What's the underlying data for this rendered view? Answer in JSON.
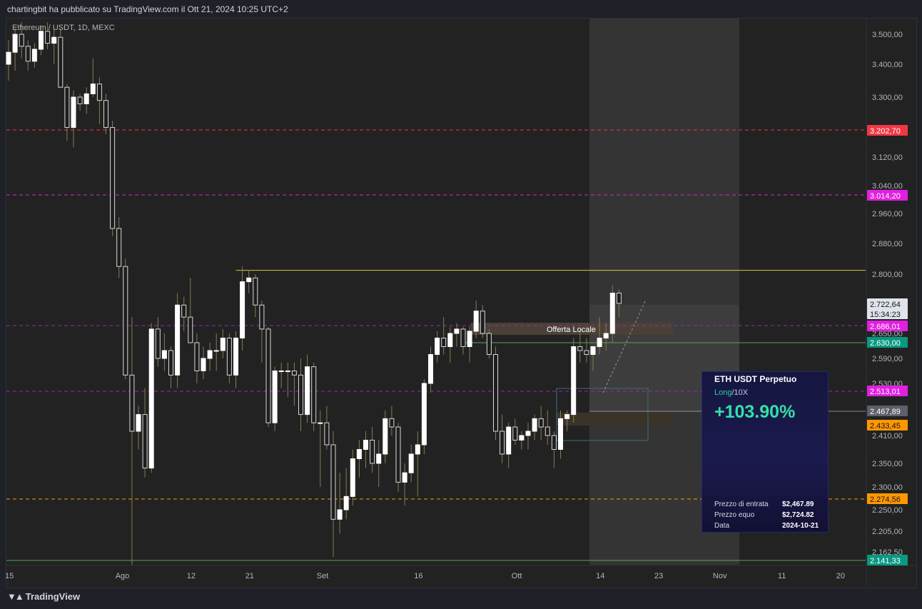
{
  "header": {
    "published_by": "chartingbit ha pubblicato su TradingView.com il Ott 21, 2024 10:25 UTC+2"
  },
  "symbol": {
    "label": "Ethereum / USDT, 1D, MEXC"
  },
  "footer": {
    "brand": "TradingView"
  },
  "annotation": {
    "label": "Offerta Locale"
  },
  "price_tags": [
    {
      "value": "3.202,70",
      "bg": "#f23645",
      "fg": "#ffffff"
    },
    {
      "value": "3.014,20",
      "bg": "#e020e0",
      "fg": "#ffffff"
    },
    {
      "value": "2.722,64",
      "bg": "#e0e3eb",
      "fg": "#131722"
    },
    {
      "value": "15:34:23",
      "bg": "#e0e3eb",
      "fg": "#131722"
    },
    {
      "value": "2.686,01",
      "bg": "#e020e0",
      "fg": "#ffffff"
    },
    {
      "value": "2.630,00",
      "bg": "#089981",
      "fg": "#ffffff"
    },
    {
      "value": "2.513,01",
      "bg": "#e020e0",
      "fg": "#ffffff"
    },
    {
      "value": "2.467,89",
      "bg": "#5d606b",
      "fg": "#ffffff"
    },
    {
      "value": "2.433,45",
      "bg": "#ff9800",
      "fg": "#131722"
    },
    {
      "value": "2.274,56",
      "bg": "#ff9800",
      "fg": "#131722"
    },
    {
      "value": "2.141,33",
      "bg": "#089981",
      "fg": "#ffffff"
    }
  ],
  "card": {
    "title": "ETH USDT Perpetuo",
    "side": "Long",
    "leverage": "/10X",
    "pnl": "+103.90%",
    "entry_label": "Prezzo di entrata",
    "entry_value": "$2,467.89",
    "fair_label": "Prezzo equo",
    "fair_value": "$2,724.82",
    "date_label": "Data",
    "date_value": "2024-10-21"
  },
  "chart_data": {
    "type": "candlestick",
    "symbol": "Ethereum / USDT",
    "interval": "1D",
    "exchange": "MEXC",
    "y_ticks": [
      {
        "label": "3.500,00",
        "value": 3500
      },
      {
        "label": "3.400,00",
        "value": 3400
      },
      {
        "label": "3.300,00",
        "value": 3300
      },
      {
        "label": "3.120,00",
        "value": 3120
      },
      {
        "label": "3.040,00",
        "value": 3040
      },
      {
        "label": "2.960,00",
        "value": 2960
      },
      {
        "label": "2.880,00",
        "value": 2880
      },
      {
        "label": "2.800,00",
        "value": 2800
      },
      {
        "label": "2.650,00",
        "value": 2650
      },
      {
        "label": "2.590,00",
        "value": 2590
      },
      {
        "label": "2.530,00",
        "value": 2530
      },
      {
        "label": "2.410,00",
        "value": 2410
      },
      {
        "label": "2.350,00",
        "value": 2350
      },
      {
        "label": "2.300,00",
        "value": 2300
      },
      {
        "label": "2.250,00",
        "value": 2250
      },
      {
        "label": "2.205,00",
        "value": 2205
      },
      {
        "label": "2.162,50",
        "value": 2162.5
      }
    ],
    "x_ticks": [
      {
        "label": "15",
        "day": 0
      },
      {
        "label": "Ago",
        "day": 17
      },
      {
        "label": "12",
        "day": 28
      },
      {
        "label": "21",
        "day": 37
      },
      {
        "label": "Set",
        "day": 48
      },
      {
        "label": "16",
        "day": 63
      },
      {
        "label": "Ott",
        "day": 78
      },
      {
        "label": "14",
        "day": 91
      },
      {
        "label": "23",
        "day": 100
      },
      {
        "label": "Nov",
        "day": 109
      },
      {
        "label": "11",
        "day": 119
      },
      {
        "label": "20",
        "day": 128
      }
    ],
    "horizontal_levels": [
      {
        "value": 3202.7,
        "color": "#f23645",
        "style": "dashed"
      },
      {
        "value": 3014.2,
        "color": "#e020e0",
        "style": "dashed"
      },
      {
        "value": 2810,
        "color": "#d4c84a",
        "style": "solid",
        "from_day": 35
      },
      {
        "value": 2686.01,
        "color": "#9c27b0",
        "style": "dashed"
      },
      {
        "value": 2630.0,
        "color": "#4caf50",
        "style": "solid",
        "from_day": 70
      },
      {
        "value": 2513.01,
        "color": "#9c27b0",
        "style": "dashed"
      },
      {
        "value": 2274.56,
        "color": "#ff9800",
        "style": "dashed"
      },
      {
        "value": 2141.33,
        "color": "#4caf50",
        "style": "solid"
      }
    ],
    "candles_start": "2024-07-15",
    "candles": [
      [
        3400,
        3480,
        3350,
        3440
      ],
      [
        3440,
        3520,
        3380,
        3500
      ],
      [
        3500,
        3540,
        3420,
        3460
      ],
      [
        3460,
        3480,
        3380,
        3410
      ],
      [
        3410,
        3470,
        3390,
        3450
      ],
      [
        3450,
        3530,
        3430,
        3510
      ],
      [
        3510,
        3540,
        3450,
        3470
      ],
      [
        3470,
        3520,
        3400,
        3490
      ],
      [
        3490,
        3520,
        3330,
        3330
      ],
      [
        3330,
        3340,
        3170,
        3210
      ],
      [
        3210,
        3320,
        3150,
        3300
      ],
      [
        3300,
        3310,
        3260,
        3280
      ],
      [
        3280,
        3330,
        3250,
        3310
      ],
      [
        3310,
        3420,
        3300,
        3340
      ],
      [
        3340,
        3360,
        3220,
        3290
      ],
      [
        3290,
        3310,
        3190,
        3210
      ],
      [
        3210,
        3230,
        2900,
        2920
      ],
      [
        2920,
        2950,
        2790,
        2820
      ],
      [
        2820,
        2840,
        2540,
        2550
      ],
      [
        2550,
        2700,
        2130,
        2420
      ],
      [
        2420,
        2480,
        2380,
        2460
      ],
      [
        2460,
        2520,
        2320,
        2340
      ],
      [
        2340,
        2690,
        2330,
        2670
      ],
      [
        2670,
        2700,
        2570,
        2590
      ],
      [
        2590,
        2650,
        2560,
        2610
      ],
      [
        2610,
        2620,
        2520,
        2550
      ],
      [
        2550,
        2750,
        2520,
        2720
      ],
      [
        2720,
        2740,
        2660,
        2700
      ],
      [
        2700,
        2790,
        2630,
        2630
      ],
      [
        2630,
        2650,
        2530,
        2560
      ],
      [
        2560,
        2620,
        2540,
        2590
      ],
      [
        2590,
        2630,
        2560,
        2610
      ],
      [
        2610,
        2650,
        2560,
        2610
      ],
      [
        2610,
        2670,
        2590,
        2640
      ],
      [
        2640,
        2650,
        2530,
        2550
      ],
      [
        2550,
        2660,
        2520,
        2640
      ],
      [
        2640,
        2820,
        2610,
        2780
      ],
      [
        2780,
        2810,
        2750,
        2790
      ],
      [
        2790,
        2800,
        2700,
        2720
      ],
      [
        2720,
        2730,
        2580,
        2670
      ],
      [
        2670,
        2680,
        2430,
        2440
      ],
      [
        2440,
        2570,
        2420,
        2560
      ],
      [
        2560,
        2580,
        2520,
        2560
      ],
      [
        2560,
        2580,
        2500,
        2560
      ],
      [
        2560,
        2580,
        2480,
        2550
      ],
      [
        2550,
        2590,
        2420,
        2460
      ],
      [
        2460,
        2600,
        2440,
        2570
      ],
      [
        2570,
        2580,
        2420,
        2440
      ],
      [
        2440,
        2470,
        2300,
        2440
      ],
      [
        2440,
        2480,
        2380,
        2390
      ],
      [
        2390,
        2420,
        2150,
        2230
      ],
      [
        2230,
        2330,
        2200,
        2250
      ],
      [
        2250,
        2340,
        2230,
        2280
      ],
      [
        2280,
        2380,
        2260,
        2360
      ],
      [
        2360,
        2400,
        2320,
        2380
      ],
      [
        2380,
        2420,
        2340,
        2400
      ],
      [
        2400,
        2430,
        2330,
        2350
      ],
      [
        2350,
        2400,
        2300,
        2370
      ],
      [
        2370,
        2470,
        2350,
        2450
      ],
      [
        2450,
        2480,
        2410,
        2430
      ],
      [
        2430,
        2440,
        2290,
        2310
      ],
      [
        2310,
        2350,
        2260,
        2330
      ],
      [
        2330,
        2390,
        2310,
        2370
      ],
      [
        2370,
        2420,
        2280,
        2390
      ],
      [
        2390,
        2540,
        2370,
        2530
      ],
      [
        2530,
        2620,
        2510,
        2600
      ],
      [
        2600,
        2660,
        2580,
        2640
      ],
      [
        2640,
        2700,
        2600,
        2620
      ],
      [
        2620,
        2680,
        2580,
        2650
      ],
      [
        2650,
        2690,
        2620,
        2670
      ],
      [
        2670,
        2680,
        2600,
        2620
      ],
      [
        2620,
        2680,
        2580,
        2660
      ],
      [
        2660,
        2730,
        2640,
        2710
      ],
      [
        2710,
        2720,
        2640,
        2650
      ],
      [
        2650,
        2670,
        2590,
        2600
      ],
      [
        2600,
        2620,
        2400,
        2420
      ],
      [
        2420,
        2460,
        2350,
        2370
      ],
      [
        2370,
        2440,
        2340,
        2430
      ],
      [
        2430,
        2450,
        2390,
        2400
      ],
      [
        2400,
        2420,
        2380,
        2410
      ],
      [
        2410,
        2440,
        2380,
        2420
      ],
      [
        2420,
        2460,
        2400,
        2450
      ],
      [
        2450,
        2480,
        2400,
        2430
      ],
      [
        2430,
        2470,
        2390,
        2410
      ],
      [
        2410,
        2420,
        2340,
        2380
      ],
      [
        2380,
        2470,
        2360,
        2450
      ],
      [
        2450,
        2470,
        2420,
        2460
      ],
      [
        2460,
        2640,
        2440,
        2620
      ],
      [
        2620,
        2670,
        2580,
        2610
      ],
      [
        2610,
        2640,
        2580,
        2600
      ],
      [
        2600,
        2620,
        2560,
        2620
      ],
      [
        2620,
        2700,
        2600,
        2640
      ],
      [
        2640,
        2690,
        2610,
        2650
      ],
      [
        2650,
        2770,
        2630,
        2750
      ],
      [
        2750,
        2760,
        2700,
        2722.64
      ]
    ]
  }
}
